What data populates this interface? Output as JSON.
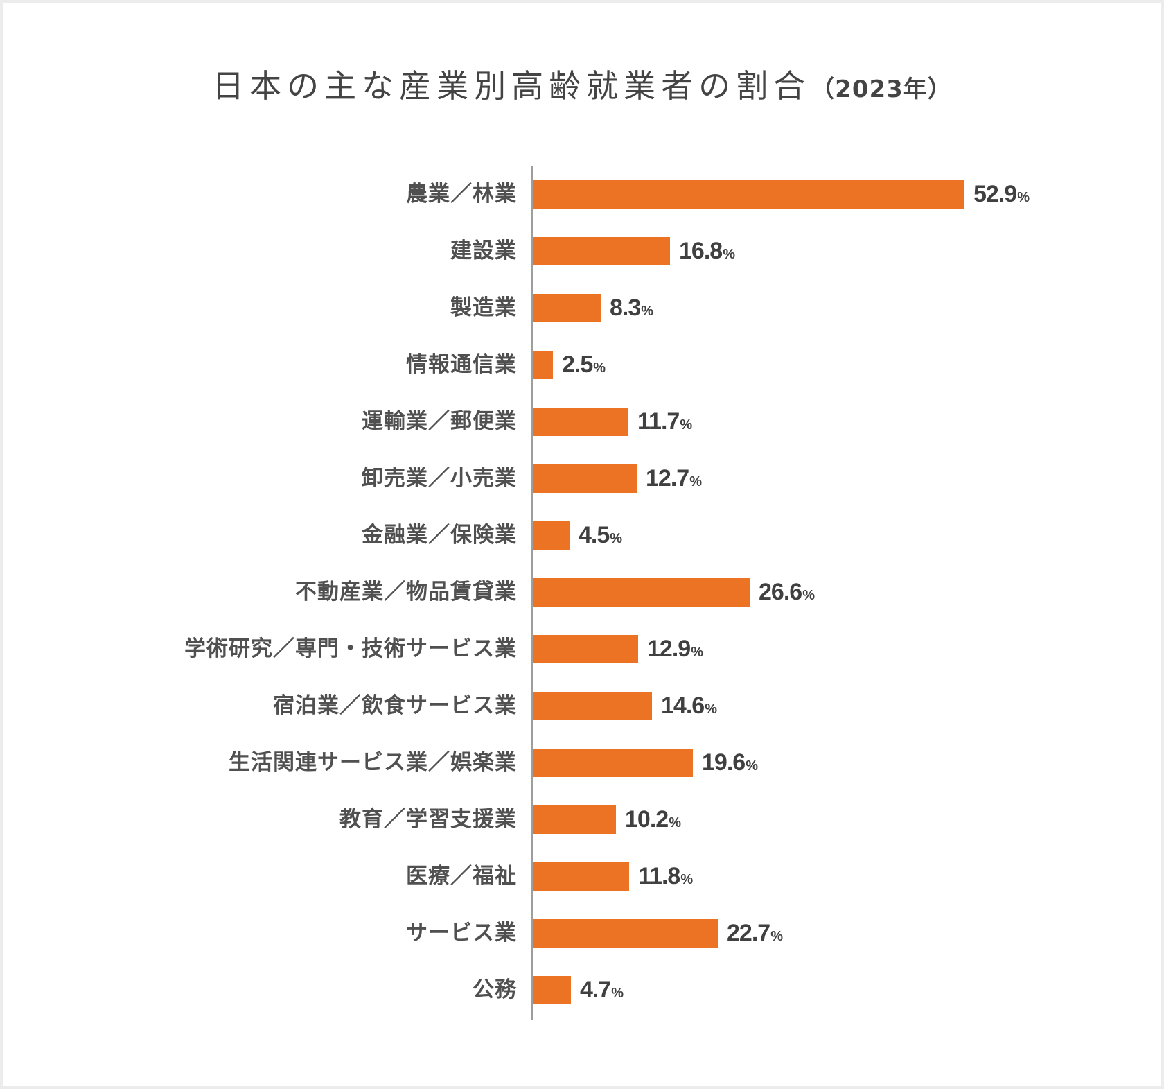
{
  "colors": {
    "bar": "#ec7323",
    "axis": "#9e9e9e",
    "text": "#444444",
    "background": "#ffffff",
    "frame": "#ececec"
  },
  "title": {
    "main": "日本の主な産業別高齢就業者の割合",
    "sub": "（2023年）"
  },
  "chart_data": {
    "type": "bar",
    "orientation": "horizontal",
    "title": "日本の主な産業別高齢就業者の割合（2023年）",
    "xlabel": "",
    "ylabel": "",
    "unit": "%",
    "grid": false,
    "legend": null,
    "xlim": [
      0,
      55
    ],
    "categories": [
      "農業／林業",
      "建設業",
      "製造業",
      "情報通信業",
      "運輸業／郵便業",
      "卸売業／小売業",
      "金融業／保険業",
      "不動産業／物品賃貸業",
      "学術研究／専門・技術サービス業",
      "宿泊業／飲食サービス業",
      "生活関連サービス業／娯楽業",
      "教育／学習支援業",
      "医療／福祉",
      "サービス業",
      "公務"
    ],
    "values": [
      52.9,
      16.8,
      8.3,
      2.5,
      11.7,
      12.7,
      4.5,
      26.6,
      12.9,
      14.6,
      19.6,
      10.2,
      11.8,
      22.7,
      4.7
    ],
    "value_labels": [
      "52.9",
      "16.8",
      "8.3",
      "2.5",
      "11.7",
      "12.7",
      "4.5",
      "26.6",
      "12.9",
      "14.6",
      "19.6",
      "10.2",
      "11.8",
      "22.7",
      "4.7"
    ],
    "percent_symbol": "%"
  }
}
